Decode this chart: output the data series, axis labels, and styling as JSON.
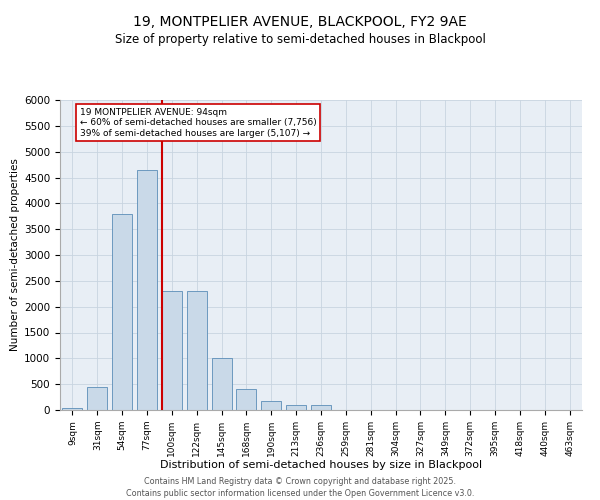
{
  "title_line1": "19, MONTPELIER AVENUE, BLACKPOOL, FY2 9AE",
  "title_line2": "Size of property relative to semi-detached houses in Blackpool",
  "xlabel": "Distribution of semi-detached houses by size in Blackpool",
  "ylabel": "Number of semi-detached properties",
  "categories": [
    "9sqm",
    "31sqm",
    "54sqm",
    "77sqm",
    "100sqm",
    "122sqm",
    "145sqm",
    "168sqm",
    "190sqm",
    "213sqm",
    "236sqm",
    "259sqm",
    "281sqm",
    "304sqm",
    "327sqm",
    "349sqm",
    "372sqm",
    "395sqm",
    "418sqm",
    "440sqm",
    "463sqm"
  ],
  "bar_values": [
    30,
    450,
    3800,
    4650,
    2300,
    2300,
    1000,
    400,
    175,
    100,
    100,
    0,
    0,
    0,
    0,
    0,
    0,
    0,
    0,
    0,
    0
  ],
  "bar_color": "#c9d9e8",
  "bar_edge_color": "#5b8db8",
  "vline_index": 4,
  "vline_color": "#cc0000",
  "annotation_title": "19 MONTPELIER AVENUE: 94sqm",
  "annotation_line1": "← 60% of semi-detached houses are smaller (7,756)",
  "annotation_line2": "39% of semi-detached houses are larger (5,107) →",
  "annotation_box_color": "#cc0000",
  "ylim": [
    0,
    6000
  ],
  "yticks": [
    0,
    500,
    1000,
    1500,
    2000,
    2500,
    3000,
    3500,
    4000,
    4500,
    5000,
    5500,
    6000
  ],
  "grid_color": "#c8d4e0",
  "background_color": "#e8eef5",
  "footer_line1": "Contains HM Land Registry data © Crown copyright and database right 2025.",
  "footer_line2": "Contains public sector information licensed under the Open Government Licence v3.0."
}
